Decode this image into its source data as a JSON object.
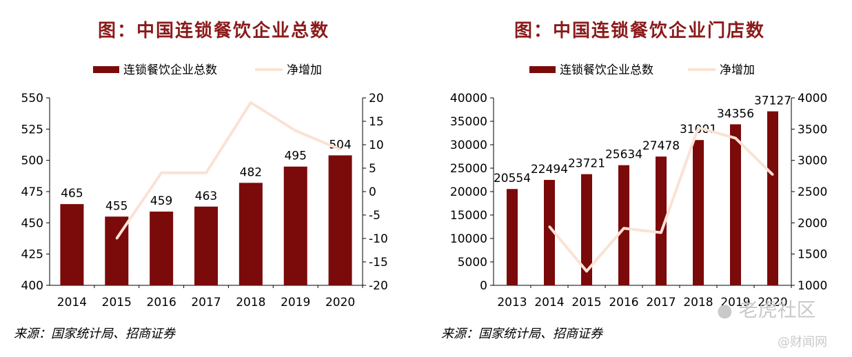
{
  "charts": [
    {
      "title": "图：中国连锁餐饮企业总数",
      "source": "来源：国家统计局、招商证券",
      "chart_data": {
        "type": "bar",
        "categories": [
          "2014",
          "2015",
          "2016",
          "2017",
          "2018",
          "2019",
          "2020"
        ],
        "series": [
          {
            "name": "连锁餐饮企业总数",
            "type": "bar",
            "axis": "left",
            "values": [
              465,
              455,
              459,
              463,
              482,
              495,
              504
            ],
            "labels": [
              "465",
              "455",
              "459",
              "463",
              "482",
              "495",
              "504"
            ],
            "color": "#7B0A0A"
          },
          {
            "name": "净增加",
            "type": "line",
            "axis": "right",
            "values": [
              null,
              -10,
              4,
              4,
              19,
              13,
              9
            ],
            "color": "#FBE2D4"
          }
        ],
        "yleft": {
          "min": 400,
          "max": 550,
          "ticks": [
            "400",
            "425",
            "450",
            "475",
            "500",
            "525",
            "550"
          ]
        },
        "yright": {
          "min": -20,
          "max": 20,
          "ticks": [
            "-20",
            "-15",
            "-10",
            "-5",
            "0",
            "5",
            "10",
            "15",
            "20"
          ]
        },
        "legend": "top"
      }
    },
    {
      "title": "图：中国连锁餐饮企业门店数",
      "source": "来源：国家统计局、招商证券",
      "chart_data": {
        "type": "bar",
        "categories": [
          "2013",
          "2014",
          "2015",
          "2016",
          "2017",
          "2018",
          "2019",
          "2020"
        ],
        "series": [
          {
            "name": "连锁餐饮企业总数",
            "type": "bar",
            "axis": "left",
            "values": [
              20554,
              22494,
              23721,
              25634,
              27478,
              31001,
              34356,
              37127
            ],
            "labels": [
              "20554",
              "22494",
              "23721",
              "25634",
              "27478",
              "31001",
              "34356",
              "37127"
            ],
            "color": "#7B0A0A"
          },
          {
            "name": "净增加",
            "type": "line",
            "axis": "right",
            "values": [
              null,
              1940,
              1227,
              1913,
              1844,
              3523,
              3355,
              2771
            ],
            "color": "#FBE2D4"
          }
        ],
        "yleft": {
          "min": 0,
          "max": 40000,
          "ticks": [
            "0",
            "5000",
            "10000",
            "15000",
            "20000",
            "25000",
            "30000",
            "35000",
            "40000"
          ]
        },
        "yright": {
          "min": 1000,
          "max": 4000,
          "ticks": [
            "1000",
            "1500",
            "2000",
            "2500",
            "3000",
            "3500",
            "4000"
          ]
        },
        "legend": "top"
      }
    }
  ],
  "watermarks": {
    "text1": "老虎社区",
    "text2": "@财闻网"
  }
}
